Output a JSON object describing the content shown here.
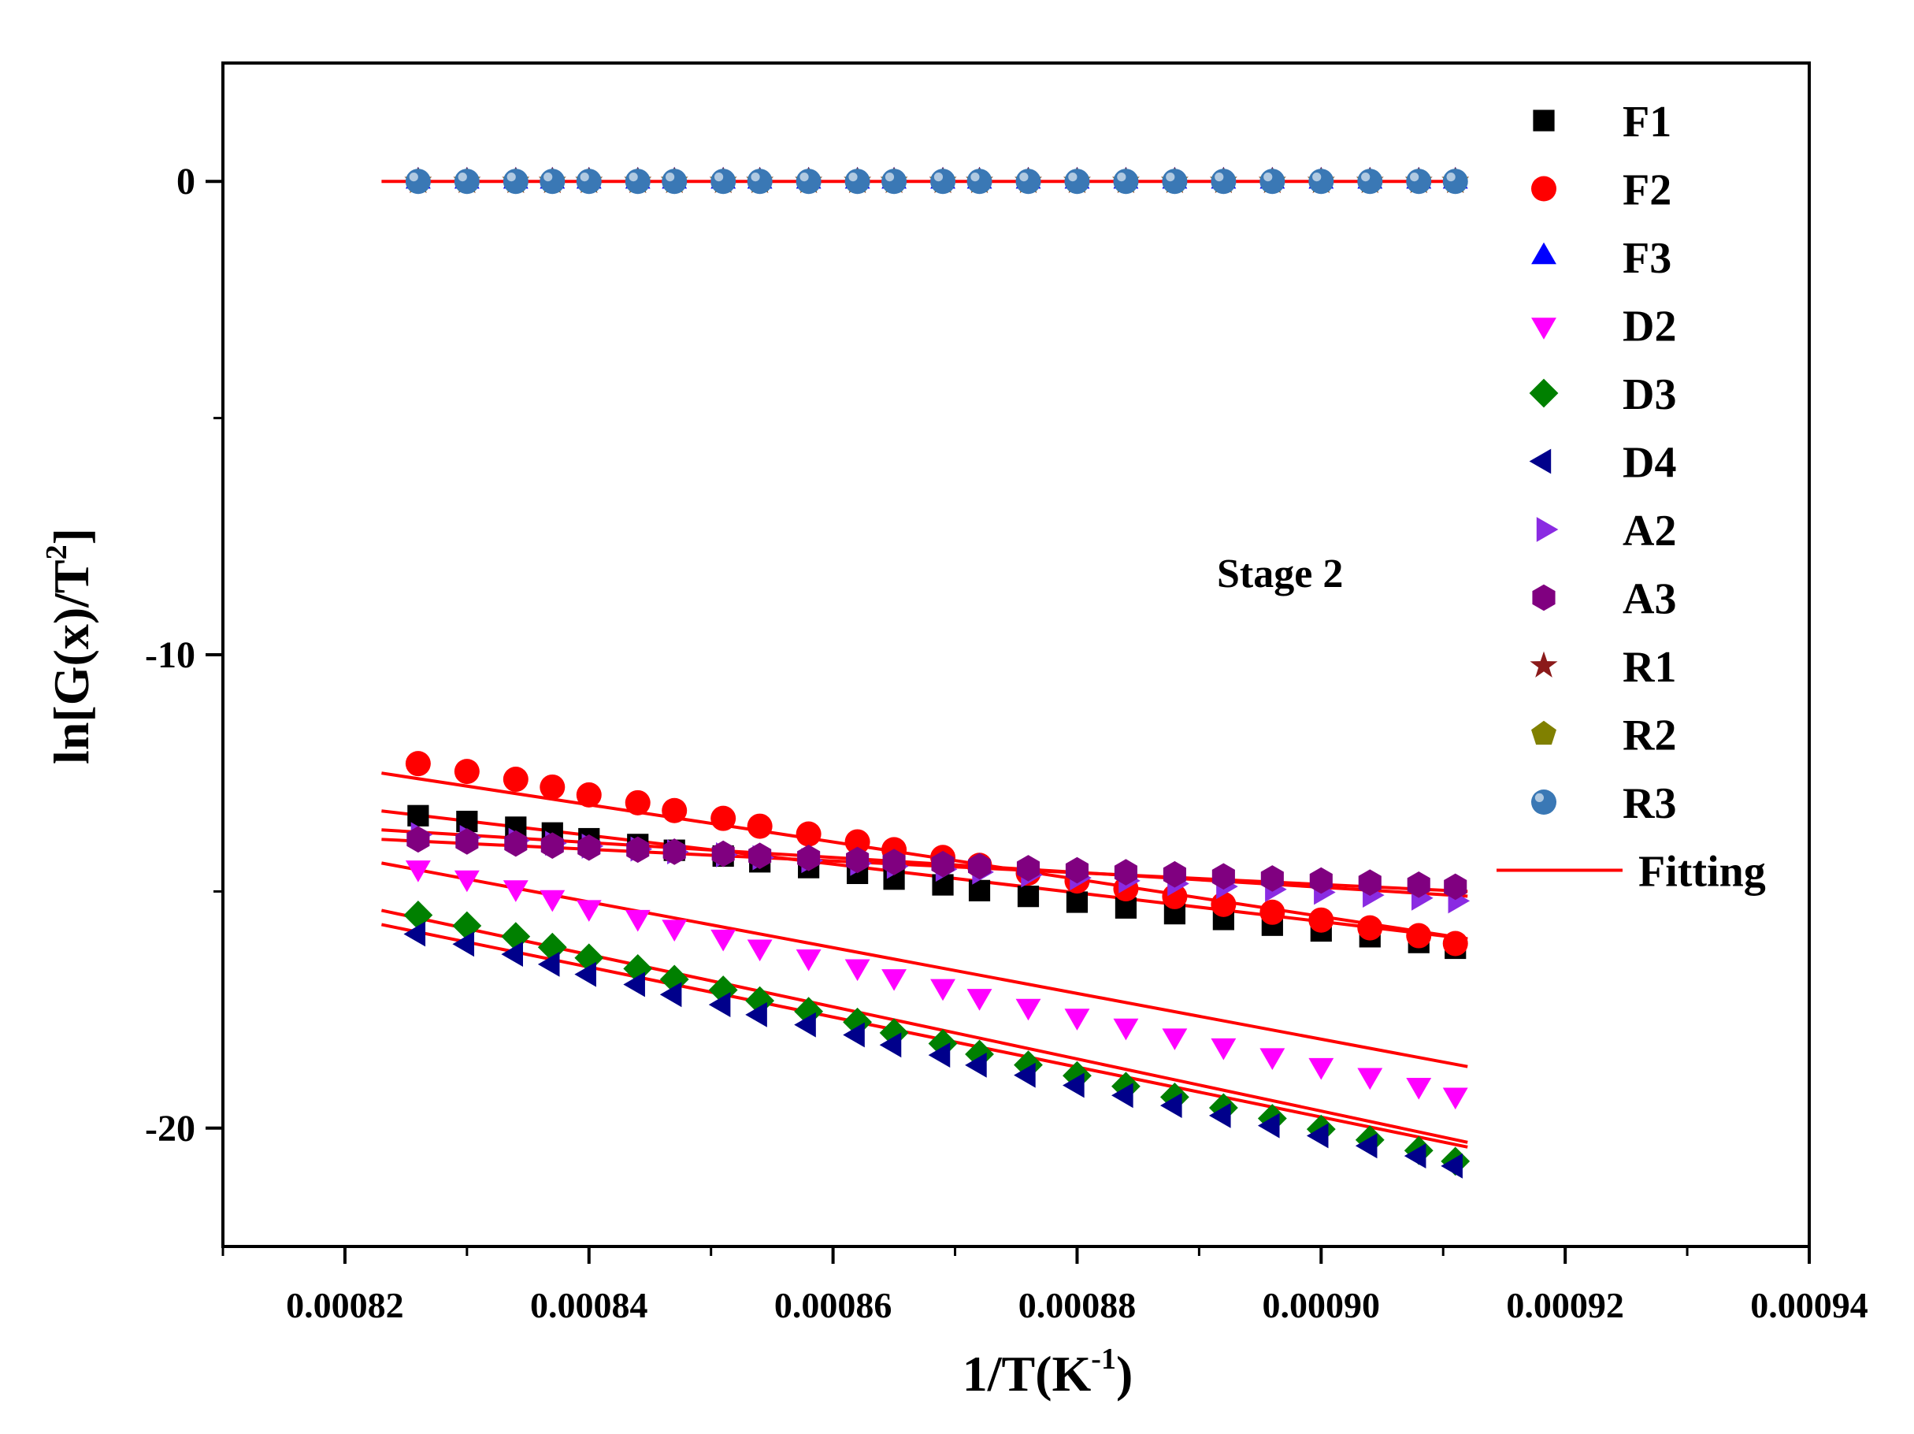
{
  "chart_data": {
    "type": "scatter",
    "title": "",
    "annotation": "Stage 2",
    "xlabel": "1/T(K",
    "xlabel_sup": "-1",
    "xlabel_tail": ")",
    "ylabel": "ln[G(x)/T",
    "ylabel_sup": "2",
    "ylabel_tail": "]",
    "xlim": [
      0.00081,
      0.00094
    ],
    "ylim": [
      -22.5,
      2.5
    ],
    "x_ticks": [
      0.00082,
      0.00084,
      0.00086,
      0.00088,
      0.0009,
      0.00092,
      0.00094
    ],
    "x_tick_labels": [
      "0.00082",
      "0.00084",
      "0.00086",
      "0.00088",
      "0.00090",
      "0.00092",
      "0.00094"
    ],
    "y_ticks": [
      0,
      -10,
      -20
    ],
    "y_tick_labels": [
      "0",
      "-10",
      "-20"
    ],
    "x": [
      0.000826,
      0.00083,
      0.000834,
      0.000837,
      0.00084,
      0.000844,
      0.000847,
      0.000851,
      0.000854,
      0.000858,
      0.000862,
      0.000865,
      0.000869,
      0.000872,
      0.000876,
      0.00088,
      0.000884,
      0.000888,
      0.000892,
      0.000896,
      0.0009,
      0.000904,
      0.000908,
      0.000911
    ],
    "legend_position": "top-right",
    "fit_label": "Fitting",
    "fit_color": "#ff0000",
    "series": [
      {
        "name": "F1",
        "marker": "square",
        "color": "#000000",
        "start": -13.4,
        "end": -16.2
      },
      {
        "name": "F2",
        "marker": "circle",
        "color": "#ff0000",
        "start": -12.3,
        "end": -16.1
      },
      {
        "name": "F3",
        "marker": "triangle-up",
        "color": "#0000ff",
        "start": 0,
        "end": 0
      },
      {
        "name": "D2",
        "marker": "triangle-down",
        "color": "#ff00ff",
        "start": -14.5,
        "end": -19.3
      },
      {
        "name": "D3",
        "marker": "diamond",
        "color": "#008000",
        "start": -15.5,
        "end": -20.7
      },
      {
        "name": "D4",
        "marker": "triangle-left",
        "color": "#00008b",
        "start": -15.9,
        "end": -20.8
      },
      {
        "name": "A2",
        "marker": "triangle-right",
        "color": "#8a2be2",
        "start": -13.8,
        "end": -15.2
      },
      {
        "name": "A3",
        "marker": "hexagon",
        "color": "#800080",
        "start": -13.9,
        "end": -14.9
      },
      {
        "name": "R1",
        "marker": "star",
        "color": "#8b1a1a",
        "start": 0,
        "end": 0
      },
      {
        "name": "R2",
        "marker": "pentagon",
        "color": "#808000",
        "start": 0,
        "end": 0
      },
      {
        "name": "R3",
        "marker": "sphere",
        "color": "#3a78b5",
        "start": 0,
        "end": 0
      }
    ],
    "fits": [
      {
        "name": "F1 fit",
        "x": [
          0.000823,
          0.000912
        ],
        "y": [
          -13.3,
          -16.0
        ]
      },
      {
        "name": "F2 fit",
        "x": [
          0.000823,
          0.000912
        ],
        "y": [
          -12.5,
          -16.0
        ]
      },
      {
        "name": "A2 fit",
        "x": [
          0.000823,
          0.000912
        ],
        "y": [
          -13.7,
          -15.1
        ]
      },
      {
        "name": "A3 fit",
        "x": [
          0.000823,
          0.000912
        ],
        "y": [
          -13.9,
          -15.0
        ]
      },
      {
        "name": "D2 fit",
        "x": [
          0.000823,
          0.000912
        ],
        "y": [
          -14.4,
          -18.7
        ]
      },
      {
        "name": "D3 fit",
        "x": [
          0.000823,
          0.000912
        ],
        "y": [
          -15.4,
          -20.3
        ]
      },
      {
        "name": "D4 fit",
        "x": [
          0.000823,
          0.000912
        ],
        "y": [
          -15.7,
          -20.4
        ]
      },
      {
        "name": "zero fit",
        "x": [
          0.000823,
          0.000912
        ],
        "y": [
          0,
          0
        ]
      }
    ]
  }
}
